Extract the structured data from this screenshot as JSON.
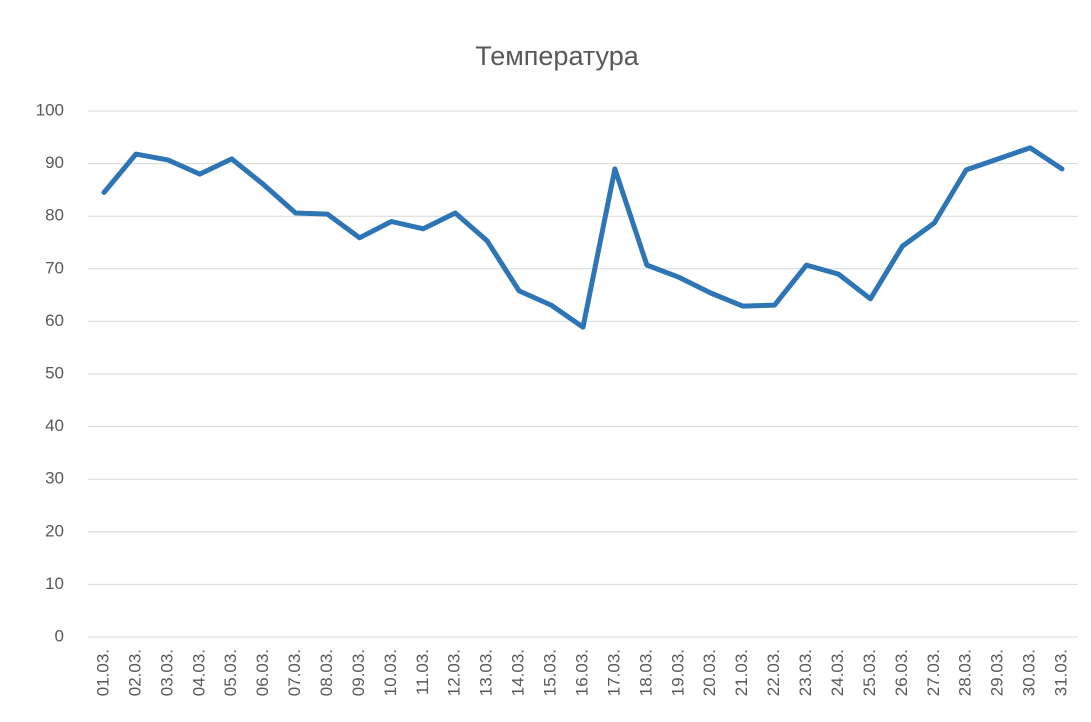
{
  "chart_data": {
    "type": "line",
    "title": "Температура",
    "categories": [
      "01.03.",
      "02.03.",
      "03.03.",
      "04.03.",
      "05.03.",
      "06.03.",
      "07.03.",
      "08.03.",
      "09.03.",
      "10.03.",
      "11.03.",
      "12.03.",
      "13.03.",
      "14.03.",
      "15.03.",
      "16.03.",
      "17.03.",
      "18.03.",
      "19.03.",
      "20.03.",
      "21.03.",
      "22.03.",
      "23.03.",
      "24.03.",
      "25.03.",
      "26.03.",
      "27.03.",
      "28.03.",
      "29.03.",
      "30.03.",
      "31.03."
    ],
    "series": [
      {
        "color": "#2e75b6",
        "values": [
          84.5,
          91.8,
          90.7,
          88,
          90.9,
          86,
          80.6,
          80.4,
          75.9,
          79,
          77.6,
          80.6,
          75.3,
          65.8,
          63.1,
          58.9,
          89,
          70.7,
          68.4,
          65.4,
          62.9,
          63.1,
          70.7,
          69,
          64.3,
          74.3,
          78.7,
          88.8,
          90.9,
          93,
          89
        ]
      }
    ],
    "ylim": [
      0,
      100
    ],
    "yticks": [
      0,
      10,
      20,
      30,
      40,
      50,
      60,
      70,
      80,
      90,
      100
    ],
    "grid": true
  }
}
